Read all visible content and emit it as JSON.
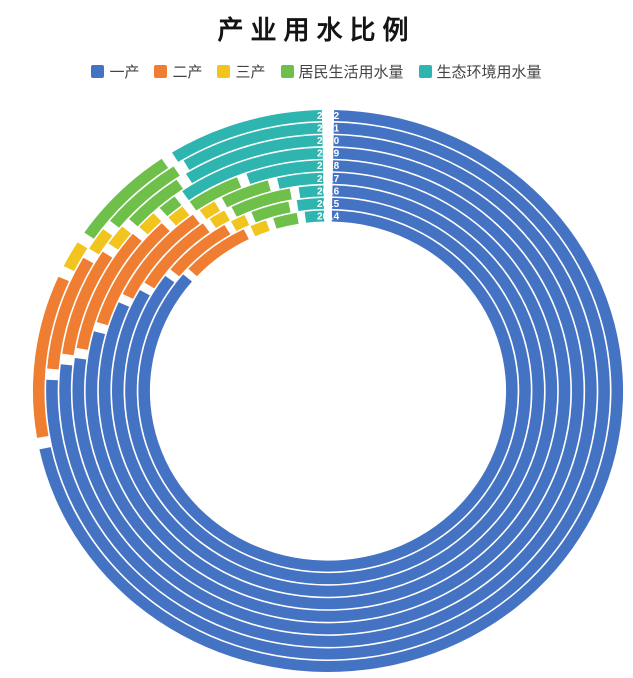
{
  "chart_data": {
    "type": "polar_stacked_bar",
    "variant": "multi-ring donut; one concentric ring per year, segments are percentage shares",
    "title": "产业用水比例",
    "years": [
      "2014",
      "2015",
      "2016",
      "2017",
      "2018",
      "2019",
      "2020",
      "2021",
      "2022"
    ],
    "value_unit": "share of total water use, % (estimated from arc angles)",
    "series": [
      {
        "name": "一产",
        "color": "#4573C4",
        "values": [
          86.5,
          85.5,
          83.5,
          82.0,
          79.5,
          77.5,
          77.0,
          76.0,
          72.0
        ]
      },
      {
        "name": "二产",
        "color": "#EF7E32",
        "values": [
          6.5,
          6.3,
          7.0,
          8.3,
          8.8,
          9.0,
          7.5,
          7.6,
          10.0
        ]
      },
      {
        "name": "三产",
        "color": "#F2C41E",
        "values": [
          2.0,
          1.7,
          1.8,
          1.7,
          1.7,
          1.8,
          1.9,
          2.0,
          2.2
        ]
      },
      {
        "name": "居民生活用水量",
        "color": "#6FBF4B",
        "values": [
          2.7,
          3.7,
          5.2,
          4.1,
          4.2,
          1.7,
          4.4,
          5.5,
          6.6
        ]
      },
      {
        "name": "生态环境用水量",
        "color": "#2FB5AF",
        "values": [
          2.3,
          2.8,
          2.5,
          3.9,
          5.8,
          10.0,
          9.2,
          8.9,
          9.2
        ]
      }
    ],
    "layout": {
      "start_angle": "12 o'clock",
      "direction": "clockwise",
      "ring_order": "2022 outermost, 2014 innermost",
      "ring_labels": {
        "text": [
          "2022",
          "2021",
          "2020",
          "2019",
          "2018",
          "2017",
          "2016",
          "2015",
          "2014"
        ],
        "position": "at top (start) of each ring",
        "color": "#ffffff"
      },
      "legend_position": "top center, below title",
      "grid": false,
      "axis_labels": false,
      "background": "#ffffff"
    }
  }
}
